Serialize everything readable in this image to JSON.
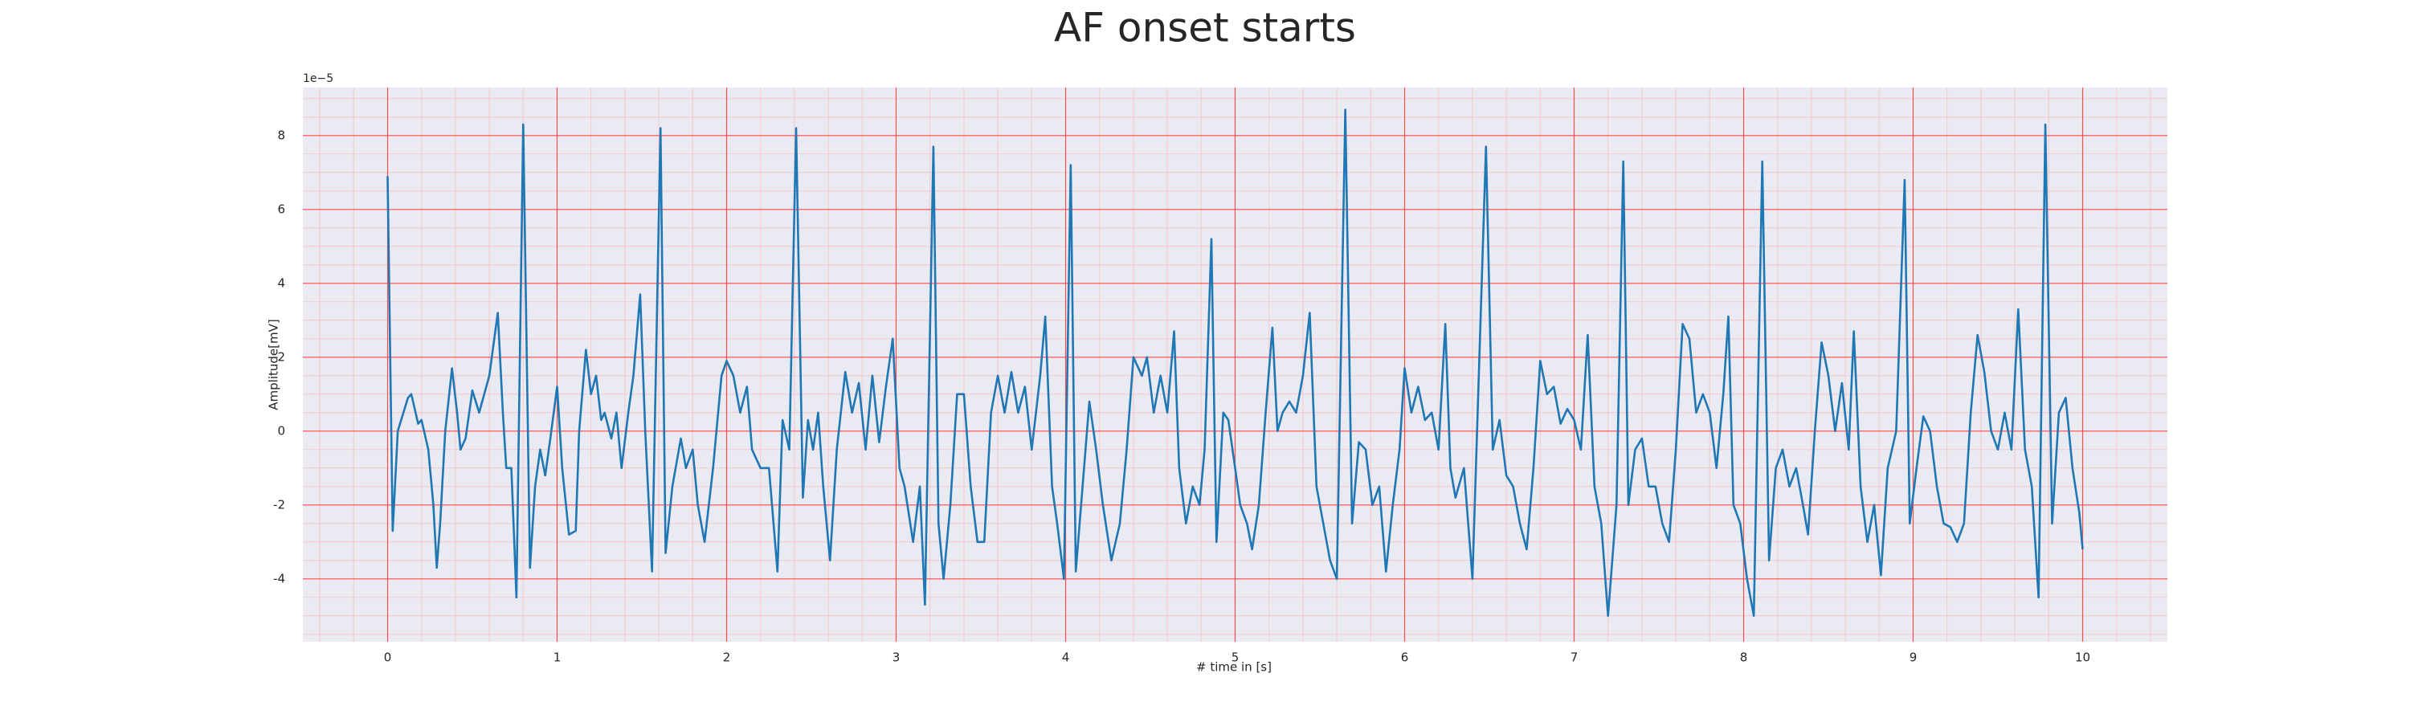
{
  "chart_data": {
    "type": "line",
    "title": "AF onset starts",
    "xlabel": "# time in [s]",
    "ylabel": "Amplitude[mV]",
    "y_offset_label": "1e−5",
    "color": "#1f77b4",
    "grid": true,
    "minor_grid": true,
    "xlim": [
      -0.5,
      10.5
    ],
    "xticks": [
      0,
      1,
      2,
      3,
      4,
      5,
      6,
      7,
      8,
      9,
      10
    ],
    "ylim": [
      -5.7,
      9.3
    ],
    "yticks": [
      -4,
      -2,
      0,
      2,
      4,
      6,
      8
    ],
    "x": [
      0,
      0.03,
      0.06,
      0.12,
      0.14,
      0.18,
      0.2,
      0.24,
      0.27,
      0.29,
      0.31,
      0.34,
      0.38,
      0.41,
      0.43,
      0.46,
      0.5,
      0.54,
      0.6,
      0.65,
      0.68,
      0.7,
      0.73,
      0.76,
      0.8,
      0.84,
      0.87,
      0.9,
      0.93,
      0.96,
      1.0,
      1.03,
      1.07,
      1.11,
      1.13,
      1.17,
      1.2,
      1.23,
      1.26,
      1.28,
      1.32,
      1.35,
      1.38,
      1.42,
      1.45,
      1.49,
      1.52,
      1.56,
      1.61,
      1.64,
      1.68,
      1.73,
      1.76,
      1.8,
      1.83,
      1.87,
      1.92,
      1.97,
      2.0,
      2.04,
      2.08,
      2.12,
      2.15,
      2.2,
      2.25,
      2.3,
      2.33,
      2.37,
      2.41,
      2.45,
      2.48,
      2.51,
      2.54,
      2.57,
      2.61,
      2.65,
      2.7,
      2.74,
      2.78,
      2.82,
      2.86,
      2.9,
      2.94,
      2.98,
      3.02,
      3.05,
      3.1,
      3.14,
      3.17,
      3.22,
      3.25,
      3.28,
      3.32,
      3.36,
      3.4,
      3.44,
      3.48,
      3.52,
      3.56,
      3.6,
      3.64,
      3.68,
      3.72,
      3.76,
      3.8,
      3.85,
      3.88,
      3.92,
      3.95,
      3.99,
      4.03,
      4.06,
      4.1,
      4.14,
      4.18,
      4.22,
      4.27,
      4.32,
      4.36,
      4.4,
      4.45,
      4.48,
      4.52,
      4.56,
      4.6,
      4.64,
      4.67,
      4.71,
      4.75,
      4.79,
      4.82,
      4.86,
      4.89,
      4.93,
      4.96,
      5.0,
      5.03,
      5.07,
      5.1,
      5.14,
      5.18,
      5.22,
      5.25,
      5.28,
      5.32,
      5.36,
      5.4,
      5.44,
      5.48,
      5.52,
      5.56,
      5.6,
      5.65,
      5.69,
      5.73,
      5.77,
      5.81,
      5.85,
      5.89,
      5.93,
      5.97,
      6.0,
      6.04,
      6.08,
      6.12,
      6.16,
      6.2,
      6.24,
      6.27,
      6.3,
      6.35,
      6.4,
      6.48,
      6.52,
      6.56,
      6.6,
      6.64,
      6.68,
      6.72,
      6.76,
      6.8,
      6.84,
      6.88,
      6.92,
      6.96,
      7.0,
      7.04,
      7.08,
      7.12,
      7.16,
      7.2,
      7.25,
      7.29,
      7.32,
      7.36,
      7.4,
      7.44,
      7.48,
      7.52,
      7.56,
      7.6,
      7.64,
      7.68,
      7.72,
      7.76,
      7.8,
      7.84,
      7.88,
      7.91,
      7.94,
      7.98,
      8.02,
      8.06,
      8.11,
      8.15,
      8.19,
      8.23,
      8.27,
      8.31,
      8.35,
      8.38,
      8.42,
      8.46,
      8.5,
      8.54,
      8.58,
      8.62,
      8.65,
      8.69,
      8.73,
      8.77,
      8.81,
      8.85,
      8.9,
      8.95,
      8.98,
      9.02,
      9.06,
      9.1,
      9.14,
      9.18,
      9.22,
      9.26,
      9.3,
      9.34,
      9.38,
      9.42,
      9.46,
      9.5,
      9.54,
      9.58,
      9.62,
      9.66,
      9.7,
      9.74,
      9.78,
      9.82,
      9.86,
      9.9,
      9.94,
      9.98,
      10.0
    ],
    "values": [
      6.9,
      -2.7,
      0,
      0.9,
      1.0,
      0.2,
      0.3,
      -0.5,
      -2.0,
      -3.7,
      -2.5,
      0,
      1.7,
      0.5,
      -0.5,
      -0.2,
      1.1,
      0.5,
      1.5,
      3.2,
      0.5,
      -1.0,
      -1.0,
      -4.5,
      8.3,
      -3.7,
      -1.5,
      -0.5,
      -1.2,
      -0.2,
      1.2,
      -1.0,
      -2.8,
      -2.7,
      0,
      2.2,
      1.0,
      1.5,
      0.3,
      0.5,
      -0.2,
      0.5,
      -1.0,
      0.5,
      1.5,
      3.7,
      0,
      -3.8,
      8.2,
      -3.3,
      -1.5,
      -0.2,
      -1.0,
      -0.5,
      -2.0,
      -3.0,
      -1.0,
      1.5,
      1.9,
      1.5,
      0.5,
      1.2,
      -0.5,
      -1.0,
      -1.0,
      -3.8,
      0.3,
      -0.5,
      8.2,
      -1.8,
      0.3,
      -0.5,
      0.5,
      -1.5,
      -3.5,
      -0.5,
      1.6,
      0.5,
      1.3,
      -0.5,
      1.5,
      -0.3,
      1.2,
      2.5,
      -1.0,
      -1.5,
      -3.0,
      -1.5,
      -4.7,
      7.7,
      -2.5,
      -4.0,
      -2.0,
      1.0,
      1.0,
      -1.5,
      -3.0,
      -3.0,
      0.5,
      1.5,
      0.5,
      1.6,
      0.5,
      1.2,
      -0.5,
      1.5,
      3.1,
      -1.5,
      -2.5,
      -4.0,
      7.2,
      -3.8,
      -1.5,
      0.8,
      -0.5,
      -2.0,
      -3.5,
      -2.5,
      -0.5,
      2.0,
      1.5,
      2.0,
      0.5,
      1.5,
      0.5,
      2.7,
      -1.0,
      -2.5,
      -1.5,
      -2.0,
      -0.5,
      5.2,
      -3.0,
      0.5,
      0.3,
      -1.0,
      -2.0,
      -2.5,
      -3.2,
      -2.0,
      0.5,
      2.8,
      0,
      0.5,
      0.8,
      0.5,
      1.5,
      3.2,
      -1.5,
      -2.5,
      -3.5,
      -4.0,
      8.7,
      -2.5,
      -0.3,
      -0.5,
      -2.0,
      -1.5,
      -3.8,
      -2.0,
      -0.5,
      1.7,
      0.5,
      1.2,
      0.3,
      0.5,
      -0.5,
      2.9,
      -1.0,
      -1.8,
      -1.0,
      -4.0,
      7.7,
      -0.5,
      0.3,
      -1.2,
      -1.5,
      -2.5,
      -3.2,
      -1.0,
      1.9,
      1.0,
      1.2,
      0.2,
      0.6,
      0.3,
      -0.5,
      2.6,
      -1.5,
      -2.5,
      -5.0,
      -2.0,
      7.3,
      -2.0,
      -0.5,
      -0.2,
      -1.5,
      -1.5,
      -2.5,
      -3.0,
      -0.5,
      2.9,
      2.5,
      0.5,
      1.0,
      0.5,
      -1.0,
      1.0,
      3.1,
      -2.0,
      -2.5,
      -4.0,
      -5.0,
      7.3,
      -3.5,
      -1.0,
      -0.5,
      -1.5,
      -1.0,
      -2.0,
      -2.8,
      0,
      2.4,
      1.5,
      0,
      1.3,
      -0.5,
      2.7,
      -1.5,
      -3.0,
      -2.0,
      -3.9,
      -1.0,
      0,
      6.8,
      -2.5,
      -1.0,
      0.4,
      0,
      -1.5,
      -2.5,
      -2.6,
      -3.0,
      -2.5,
      0.5,
      2.6,
      1.6,
      0,
      -0.5,
      0.5,
      -0.5,
      3.3,
      -0.5,
      -1.5,
      -4.5,
      8.3,
      -2.5,
      0.5,
      0.9,
      -1.0,
      -2.2,
      -3.2
    ]
  }
}
